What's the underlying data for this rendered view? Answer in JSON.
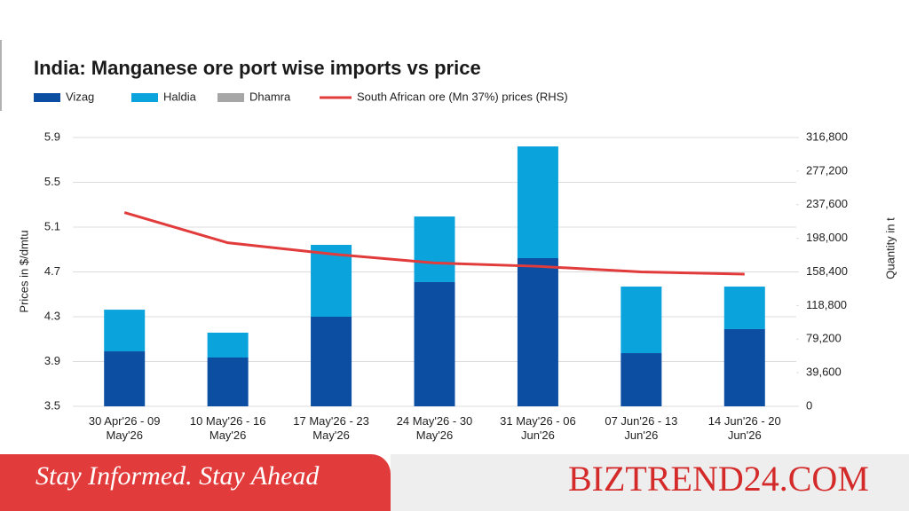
{
  "chart_data": {
    "type": "bar",
    "title": "India: Manganese ore port wise imports vs price",
    "categories": [
      "30 Apr'26 - 09 May'26",
      "10 May'26 - 16 May'26",
      "17 May'26 - 23 May'26",
      "24 May'26 - 30 May'26",
      "31 May'26 - 06 Jun'26",
      "07 Jun'26 - 13 Jun'26",
      "14 Jun'26 - 20 Jun'26"
    ],
    "series": [
      {
        "name": "Vizag",
        "color": "#0b4ea2",
        "type": "bar",
        "axis": "y2",
        "values": [
          64800,
          57500,
          105600,
          146400,
          174600,
          62700,
          91000
        ]
      },
      {
        "name": "Haldia",
        "color": "#0ba3dc",
        "type": "bar",
        "axis": "y2",
        "values": [
          49100,
          29300,
          84700,
          77300,
          131700,
          78400,
          50100
        ]
      },
      {
        "name": "Dhamra",
        "color": "#a6a6a6",
        "type": "bar",
        "axis": "y2",
        "values": [
          0,
          0,
          0,
          0,
          0,
          0,
          0
        ]
      },
      {
        "name": "South African ore (Mn 37%) prices (RHS)",
        "color": "#e23b3b",
        "type": "line",
        "values": [
          5.23,
          4.96,
          4.86,
          4.78,
          4.75,
          4.7,
          4.68
        ]
      }
    ],
    "ylabel": "Prices in $/dmtu",
    "y2label": "Quantity in t",
    "ylim": [
      3.5,
      5.9
    ],
    "yticks": [
      3.5,
      3.9,
      4.3,
      4.7,
      5.1,
      5.5,
      5.9
    ],
    "y2lim": [
      0,
      316800
    ],
    "y2ticks": [
      0,
      {
        "value": 39600,
        "label": "39,600"
      },
      {
        "value": 79200,
        "label": "79,200"
      },
      {
        "value": 118800,
        "label": "118,800"
      },
      {
        "value": 158400,
        "label": "158,400"
      },
      {
        "value": 198000,
        "label": "198,000"
      },
      {
        "value": 237600,
        "label": "237,600"
      },
      {
        "value": 277200,
        "label": "277,200"
      },
      {
        "value": 316800,
        "label": "316,800"
      }
    ],
    "grid": true
  },
  "banner": {
    "tagline": "Stay Informed. Stay Ahead",
    "brand": "BIZTREND24.COM"
  }
}
